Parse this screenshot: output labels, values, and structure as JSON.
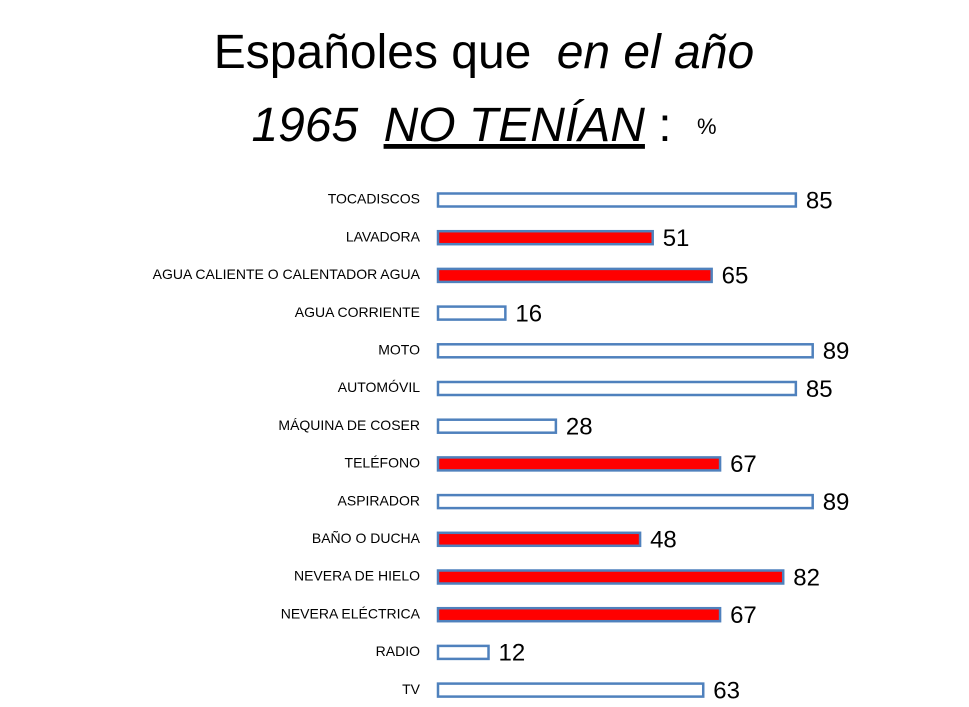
{
  "chart_data": {
    "type": "bar",
    "orientation": "horizontal",
    "title": {
      "normal": "Españoles que",
      "italic": "en el año",
      "year": "1965",
      "underlined": "NO TENÍAN",
      "colon": ":",
      "unit": "%"
    },
    "categories": [
      "TOCADISCOS",
      "LAVADORA",
      "AGUA CALIENTE O CALENTADOR AGUA",
      "AGUA CORRIENTE",
      "MOTO",
      "AUTOMÓVIL",
      "MÁQUINA DE COSER",
      "TELÉFONO",
      "ASPIRADOR",
      "BAÑO O DUCHA",
      "NEVERA DE HIELO",
      "NEVERA ELÉCTRICA",
      "RADIO",
      "TV"
    ],
    "values": [
      85,
      51,
      65,
      16,
      89,
      85,
      28,
      67,
      89,
      48,
      82,
      67,
      12,
      63
    ],
    "colors": [
      "#ffffff",
      "#ff0000",
      "#ff0000",
      "#ffffff",
      "#ffffff",
      "#ffffff",
      "#ffffff",
      "#ff0000",
      "#ffffff",
      "#ff0000",
      "#ff0000",
      "#ff0000",
      "#ffffff",
      "#ffffff"
    ],
    "edge_color": "#4f81bd"
  }
}
